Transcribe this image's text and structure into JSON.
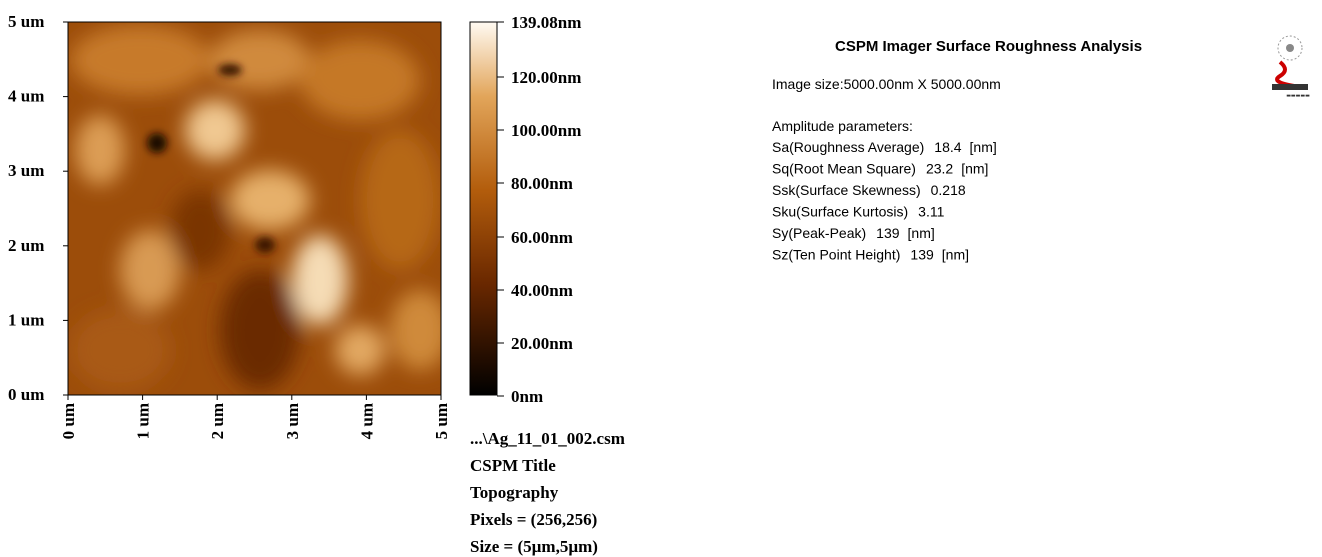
{
  "image": {
    "y_ticks": [
      "5 um",
      "4 um",
      "3 um",
      "2 um",
      "1 um",
      "0 um"
    ],
    "x_ticks": [
      "0 um",
      "1 um",
      "2 um",
      "3 um",
      "4 um",
      "5 um"
    ]
  },
  "colorbar": {
    "ticks": [
      "139.08nm",
      "120.00nm",
      "100.00nm",
      "80.00nm",
      "60.00nm",
      "40.00nm",
      "20.00nm",
      "0nm"
    ]
  },
  "file_info": [
    "...\\Ag_11_01_002.csm",
    "CSPM Title",
    "Topography",
    "Pixels = (256,256)",
    "Size = (5µm,5µm)"
  ],
  "report": {
    "title": "CSPM Imager Surface Roughness Analysis",
    "image_size": "Image size:5000.00nm X 5000.00nm",
    "section": "Amplitude parameters:",
    "parameters": [
      {
        "name": "Sa(Roughness Average)",
        "value": 18.4,
        "unit": "[nm]"
      },
      {
        "name": "Sq(Root Mean Square)",
        "value": 23.2,
        "unit": "[nm]"
      },
      {
        "name": "Ssk(Surface Skewness)",
        "value": 0.218
      },
      {
        "name": "Sku(Surface Kurtosis)",
        "value": 3.11
      },
      {
        "name": "Sy(Peak-Peak)",
        "value": 139,
        "unit": "[nm]"
      },
      {
        "name": "Sz(Ten Point Height)",
        "value": 139,
        "unit": "[nm]"
      }
    ]
  }
}
